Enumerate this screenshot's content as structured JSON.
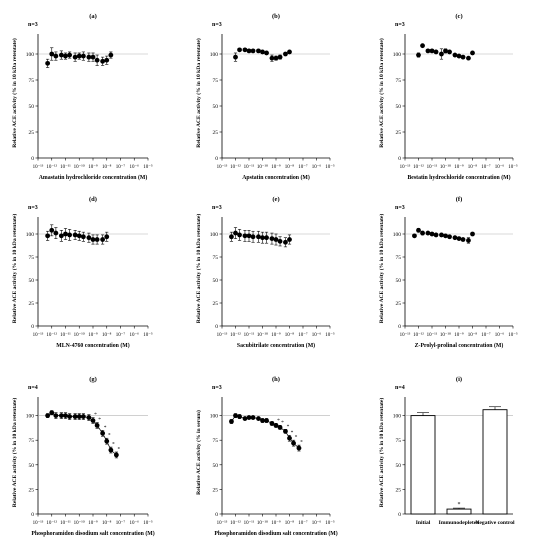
{
  "chart_data": [
    {
      "type": "scatter",
      "panel": "(a)",
      "n": "n=3",
      "ylabel": "Relative ACE activity (% in 10 kDa retentate)",
      "xlabel": "Amastatin hydrochloride concentration (M)",
      "xscale": "log",
      "xlim": [
        -13,
        -5
      ],
      "ylim": [
        0,
        125
      ],
      "x_exponents": [
        -13,
        -12,
        -11,
        -10,
        -9,
        -8,
        -7,
        -6,
        -5
      ],
      "y_ticks": [
        0,
        25,
        50,
        75,
        100
      ],
      "reference_line": 100,
      "x": [
        -12.3,
        -12,
        -11.7,
        -11.3,
        -11,
        -10.7,
        -10.3,
        -10,
        -9.7,
        -9.3,
        -9,
        -8.7,
        -8.3,
        -8,
        -7.7
      ],
      "values": [
        91,
        100,
        98,
        99,
        98,
        99,
        97,
        98,
        98,
        97,
        97,
        94,
        93,
        94,
        99
      ],
      "err": [
        4,
        6,
        4,
        4,
        3,
        3,
        4,
        3,
        4,
        4,
        4,
        5,
        4,
        4,
        3
      ],
      "sig": []
    },
    {
      "type": "scatter",
      "panel": "(b)",
      "n": "n=3",
      "ylabel": "Relative ACE activity (% in 10 kDa retentate)",
      "xlabel": "Apstatin concentration (M)",
      "xscale": "log",
      "xlim": [
        -13,
        -5
      ],
      "ylim": [
        0,
        125
      ],
      "x_exponents": [
        -13,
        -12,
        -11,
        -10,
        -9,
        -8,
        -7,
        -6,
        -5
      ],
      "y_ticks": [
        0,
        25,
        50,
        75,
        100
      ],
      "reference_line": 100,
      "x": [
        -12,
        -11.7,
        -11.3,
        -11,
        -10.7,
        -10.3,
        -10,
        -9.7,
        -9.3,
        -9,
        -8.7,
        -8.3,
        -8
      ],
      "values": [
        97,
        104,
        104,
        103,
        103,
        103,
        102,
        101,
        96,
        96,
        97,
        100,
        102
      ],
      "err": [
        4,
        1,
        1,
        1,
        1,
        1,
        1,
        1,
        3,
        2,
        2,
        1,
        1
      ],
      "sig": []
    },
    {
      "type": "scatter",
      "panel": "(c)",
      "n": "n=3",
      "ylabel": "Relative ACE activity (% in 10 kDa retentate)",
      "xlabel": "Bestatin hydrochloride concentration (M)",
      "xscale": "log",
      "xlim": [
        -13,
        -5
      ],
      "ylim": [
        0,
        125
      ],
      "x_exponents": [
        -13,
        -12,
        -11,
        -10,
        -9,
        -8,
        -7,
        -6,
        -5
      ],
      "y_ticks": [
        0,
        25,
        50,
        75,
        100
      ],
      "reference_line": 100,
      "x": [
        -12,
        -11.7,
        -11.3,
        -11,
        -10.7,
        -10.3,
        -10,
        -9.7,
        -9.3,
        -9,
        -8.7,
        -8.3,
        -8
      ],
      "values": [
        99,
        108,
        103,
        103,
        102,
        100,
        103,
        102,
        99,
        98,
        97,
        96,
        101
      ],
      "err": [
        2,
        1,
        1,
        1,
        1,
        5,
        2,
        1,
        1,
        1,
        1,
        1,
        1
      ],
      "sig": []
    },
    {
      "type": "scatter",
      "panel": "(d)",
      "n": "n=3",
      "ylabel": "Relative ACE activity (% in 10 kDa retentate)",
      "xlabel": "MLN-4760 concentration (M)",
      "xscale": "log",
      "xlim": [
        -13,
        -5
      ],
      "ylim": [
        0,
        125
      ],
      "x_exponents": [
        -13,
        -12,
        -11,
        -10,
        -9,
        -8,
        -7,
        -6,
        -5
      ],
      "y_ticks": [
        0,
        25,
        50,
        75,
        100
      ],
      "reference_line": 100,
      "x": [
        -12.3,
        -12,
        -11.7,
        -11.3,
        -11,
        -10.7,
        -10.3,
        -10,
        -9.7,
        -9.3,
        -9,
        -8.7,
        -8.3,
        -8
      ],
      "values": [
        98,
        104,
        101,
        98,
        100,
        99,
        99,
        98,
        97,
        96,
        94,
        94,
        94,
        97
      ],
      "err": [
        5,
        6,
        6,
        6,
        6,
        6,
        5,
        5,
        5,
        5,
        5,
        5,
        5,
        5
      ],
      "sig": []
    },
    {
      "type": "scatter",
      "panel": "(e)",
      "n": "n=3",
      "ylabel": "Relative ACE activity (% in 10 kDa retentate)",
      "xlabel": "Sacubitrilate concentration (M)",
      "xscale": "log",
      "xlim": [
        -13,
        -5
      ],
      "ylim": [
        0,
        125
      ],
      "x_exponents": [
        -13,
        -12,
        -11,
        -10,
        -9,
        -8,
        -7,
        -6,
        -5
      ],
      "y_ticks": [
        0,
        25,
        50,
        75,
        100
      ],
      "reference_line": 100,
      "x": [
        -12.3,
        -12,
        -11.7,
        -11.3,
        -11,
        -10.7,
        -10.3,
        -10,
        -9.7,
        -9.3,
        -9,
        -8.7,
        -8.3,
        -8
      ],
      "values": [
        97,
        101,
        99,
        98,
        98,
        97,
        97,
        96,
        96,
        95,
        94,
        92,
        91,
        94
      ],
      "err": [
        5,
        6,
        6,
        6,
        6,
        6,
        6,
        6,
        6,
        6,
        6,
        5,
        5,
        5
      ],
      "sig": []
    },
    {
      "type": "scatter",
      "panel": "(f)",
      "n": "n=3",
      "ylabel": "Relative ACE activity (% in 10 kDa retentate)",
      "xlabel": "Z-Prolyl-prolinal concentration (M)",
      "xscale": "log",
      "xlim": [
        -13,
        -5
      ],
      "ylim": [
        0,
        125
      ],
      "x_exponents": [
        -13,
        -12,
        -11,
        -10,
        -9,
        -8,
        -7,
        -6,
        -5
      ],
      "y_ticks": [
        0,
        25,
        50,
        75,
        100
      ],
      "reference_line": 100,
      "x": [
        -12.3,
        -12,
        -11.7,
        -11.3,
        -11,
        -10.7,
        -10.3,
        -10,
        -9.7,
        -9.3,
        -9,
        -8.7,
        -8.3,
        -8
      ],
      "values": [
        98,
        104,
        101,
        101,
        100,
        99,
        99,
        98,
        97,
        96,
        95,
        94,
        93,
        100
      ],
      "err": [
        1,
        2,
        2,
        1,
        1,
        1,
        1,
        1,
        1,
        1,
        1,
        1,
        3,
        1
      ],
      "sig": []
    },
    {
      "type": "line",
      "panel": "(g)",
      "n": "n=4",
      "ylabel": "Relative ACE activity (% in 10 kDa retentate)",
      "xlabel": "Phosphoramidon disodium salt concentration (M)",
      "xscale": "log",
      "xlim": [
        -13,
        -5
      ],
      "ylim": [
        0,
        125
      ],
      "x_exponents": [
        -13,
        -12,
        -11,
        -10,
        -9,
        -8,
        -7,
        -6,
        -5
      ],
      "y_ticks": [
        0,
        25,
        50,
        75,
        100
      ],
      "reference_line": 100,
      "x": [
        -12.3,
        -12,
        -11.7,
        -11.3,
        -11,
        -10.7,
        -10.3,
        -10,
        -9.7,
        -9.3,
        -9,
        -8.7,
        -8.3,
        -8,
        -7.7,
        -7.3
      ],
      "values": [
        100,
        103,
        100,
        100,
        100,
        99,
        99,
        99,
        99,
        98,
        95,
        90,
        82,
        74,
        65,
        60
      ],
      "err": [
        2,
        2,
        3,
        3,
        3,
        3,
        3,
        3,
        3,
        3,
        3,
        3,
        3,
        3,
        3,
        3
      ],
      "sig": [
        false,
        false,
        false,
        false,
        false,
        false,
        false,
        false,
        false,
        false,
        true,
        true,
        true,
        true,
        true,
        true
      ]
    },
    {
      "type": "line",
      "panel": "(h)",
      "n": "n=3",
      "ylabel": "Relative ACE activity (% in serum)",
      "xlabel": "Phosphoramidon disodium salt concentration (M)",
      "xscale": "log",
      "xlim": [
        -13,
        -5
      ],
      "ylim": [
        0,
        125
      ],
      "x_exponents": [
        -13,
        -12,
        -11,
        -10,
        -9,
        -8,
        -7,
        -6,
        -5
      ],
      "y_ticks": [
        0,
        25,
        50,
        75,
        100
      ],
      "reference_line": 100,
      "x": [
        -12.3,
        -12,
        -11.7,
        -11.3,
        -11,
        -10.7,
        -10.3,
        -10,
        -9.7,
        -9.3,
        -9,
        -8.7,
        -8.3,
        -8,
        -7.7,
        -7.3
      ],
      "values": [
        94,
        100,
        99,
        97,
        98,
        98,
        97,
        95,
        95,
        92,
        90,
        88,
        84,
        77,
        72,
        67
      ],
      "err": [
        2,
        2,
        2,
        1,
        1,
        1,
        1,
        2,
        2,
        2,
        2,
        2,
        2,
        3,
        3,
        3
      ],
      "sig": [
        false,
        false,
        false,
        false,
        false,
        false,
        false,
        false,
        false,
        false,
        true,
        true,
        true,
        true,
        true,
        true
      ]
    },
    {
      "type": "bar",
      "panel": "(i)",
      "n": "n=4",
      "ylabel": "Relative ACE activity (% in 10 kDa retentate)",
      "xlabel": "",
      "ylim": [
        0,
        125
      ],
      "y_ticks": [
        0,
        25,
        50,
        75,
        100
      ],
      "reference_line": 100,
      "categories": [
        "Initial",
        "Immunodepleted",
        "Negative control"
      ],
      "values": [
        100,
        5,
        106
      ],
      "err": [
        3,
        1,
        3
      ],
      "sig": [
        false,
        true,
        false
      ]
    }
  ],
  "sig_symbol": "*"
}
